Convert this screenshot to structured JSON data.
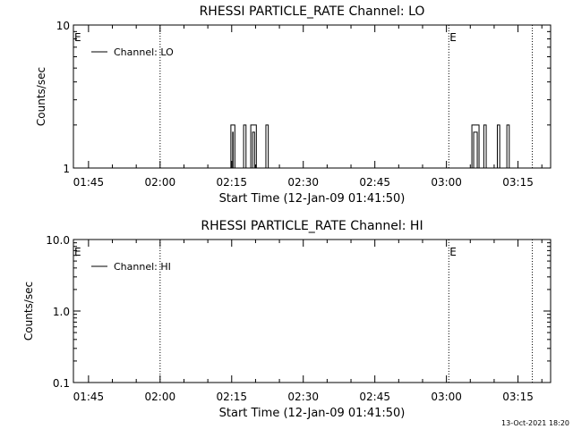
{
  "footer_timestamp": "13-Oct-2021 18:20",
  "chart_data": [
    {
      "type": "line",
      "title": "RHESSI PARTICLE_RATE Channel: LO",
      "xlabel": "Start Time (12-Jan-09 01:41:50)",
      "ylabel": "Counts/sec",
      "y_scale": "log",
      "ylim": [
        1,
        10
      ],
      "y_ticks": [
        1,
        10
      ],
      "y_tick_labels": [
        "1",
        "10"
      ],
      "xlim": [
        "01:41:50",
        "03:21:50"
      ],
      "x_ticks": [
        "01:45",
        "02:00",
        "02:15",
        "02:30",
        "02:45",
        "03:00",
        "03:15"
      ],
      "grid": false,
      "legend": {
        "position": "top-left",
        "entries": [
          "Channel: LO"
        ]
      },
      "annotations": [
        {
          "type": "vertical-dotted-line",
          "x": "02:00:00"
        },
        {
          "type": "vertical-dotted-line",
          "x": "03:00:30"
        },
        {
          "type": "vertical-dotted-line",
          "x": "03:18:00"
        }
      ],
      "markers": [
        {
          "label": "E",
          "x": "01:41:50"
        },
        {
          "label": "E",
          "x": "03:00:30"
        }
      ],
      "series": [
        {
          "name": "Channel: LO",
          "spikes": [
            {
              "start": "02:14:50",
              "end": "02:15:40",
              "value": 2
            },
            {
              "start": "02:17:30",
              "end": "02:18:00",
              "value": 2
            },
            {
              "start": "02:19:00",
              "end": "02:20:10",
              "value": 2
            },
            {
              "start": "02:22:10",
              "end": "02:22:40",
              "value": 2
            },
            {
              "start": "03:05:20",
              "end": "03:06:50",
              "value": 2
            },
            {
              "start": "03:07:50",
              "end": "03:08:20",
              "value": 2
            },
            {
              "start": "03:10:40",
              "end": "03:11:10",
              "value": 2
            },
            {
              "start": "03:12:40",
              "end": "03:13:10",
              "value": 2
            }
          ]
        }
      ]
    },
    {
      "type": "line",
      "title": "RHESSI PARTICLE_RATE Channel: HI",
      "xlabel": "Start Time (12-Jan-09 01:41:50)",
      "ylabel": "Counts/sec",
      "y_scale": "log",
      "ylim": [
        0.1,
        10
      ],
      "y_ticks": [
        0.1,
        1,
        10
      ],
      "y_tick_labels": [
        "0.1",
        "1.0",
        "10.0"
      ],
      "xlim": [
        "01:41:50",
        "03:21:50"
      ],
      "x_ticks": [
        "01:45",
        "02:00",
        "02:15",
        "02:30",
        "02:45",
        "03:00",
        "03:15"
      ],
      "grid": false,
      "legend": {
        "position": "top-left",
        "entries": [
          "Channel: HI"
        ]
      },
      "annotations": [
        {
          "type": "vertical-dotted-line",
          "x": "02:00:00"
        },
        {
          "type": "vertical-dotted-line",
          "x": "03:00:30"
        },
        {
          "type": "vertical-dotted-line",
          "x": "03:18:00"
        }
      ],
      "markers": [
        {
          "label": "E",
          "x": "01:41:50"
        },
        {
          "label": "E",
          "x": "03:00:30"
        }
      ],
      "series": [
        {
          "name": "Channel: HI",
          "spikes": []
        }
      ]
    }
  ]
}
